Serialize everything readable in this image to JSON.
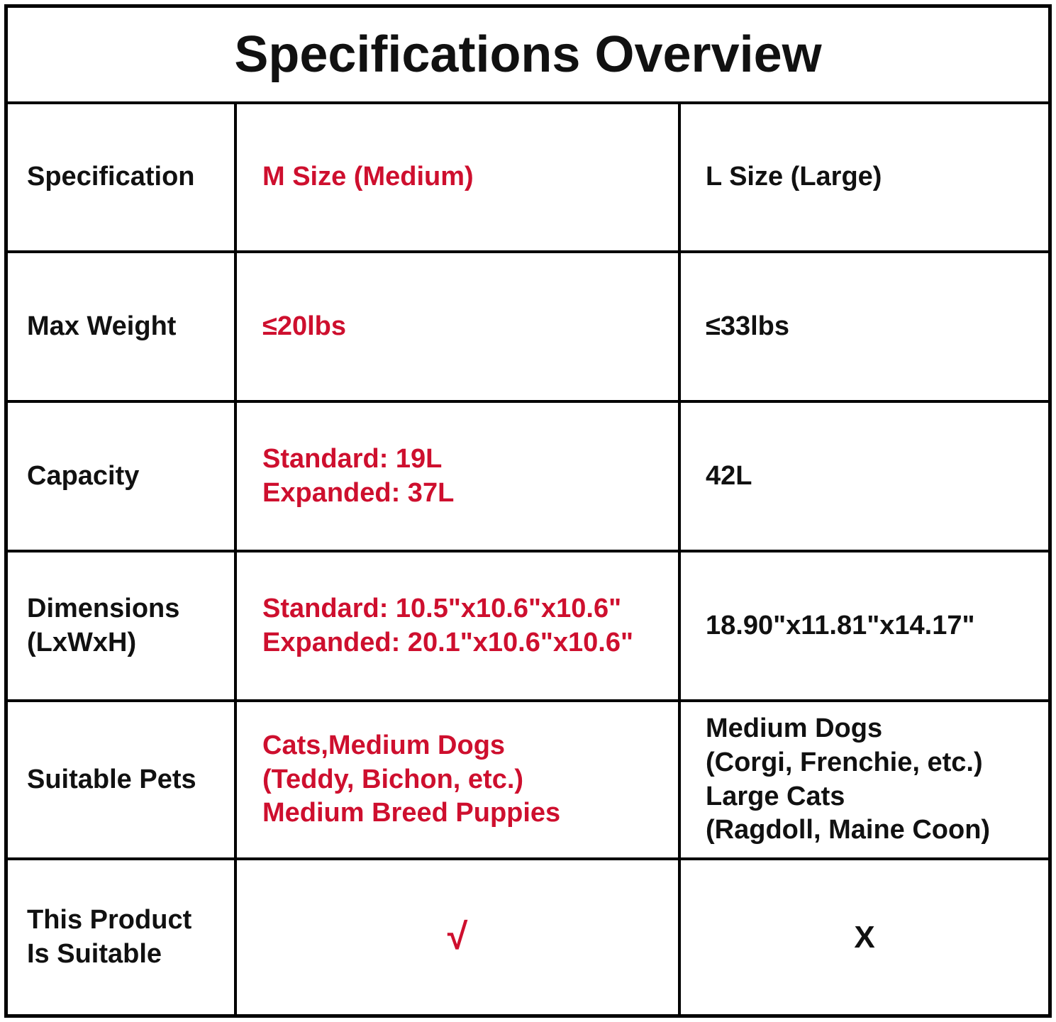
{
  "title": "Specifications Overview",
  "colors": {
    "accent": "#CE0F2E",
    "ink": "#111111",
    "border": "#000000",
    "background": "#FFFFFF"
  },
  "table": {
    "rows": [
      {
        "label": "Specification",
        "medium": "M Size (Medium)",
        "large": "L Size (Large)"
      },
      {
        "label": "Max Weight",
        "medium": "≤20lbs",
        "large": "≤33lbs"
      },
      {
        "label": "Capacity",
        "medium": "Standard: 19L\nExpanded: 37L",
        "large": "42L"
      },
      {
        "label": "Dimensions\n(LxWxH)",
        "medium": "Standard: 10.5\"x10.6\"x10.6\"\nExpanded: 20.1\"x10.6\"x10.6\"",
        "large": "18.90\"x11.81\"x14.17\""
      },
      {
        "label": "Suitable Pets",
        "medium": "Cats,Medium Dogs\n(Teddy, Bichon, etc.)\nMedium Breed Puppies",
        "large": "Medium Dogs\n(Corgi, Frenchie, etc.)\nLarge Cats\n(Ragdoll, Maine Coon)"
      },
      {
        "label": "This Product\nIs Suitable",
        "medium": "√",
        "large": "X"
      }
    ]
  }
}
